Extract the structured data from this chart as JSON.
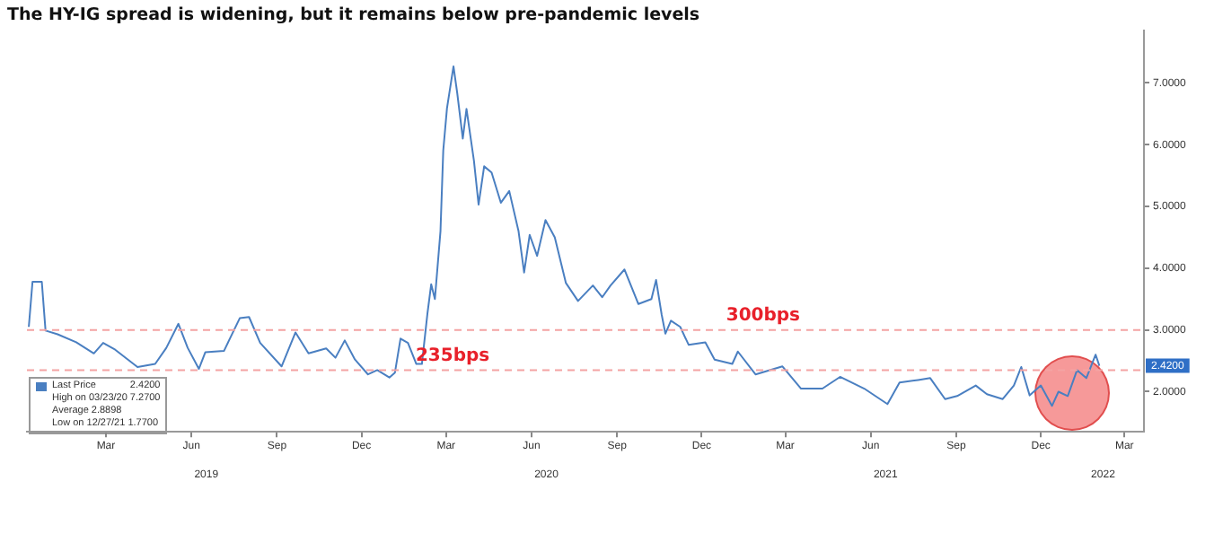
{
  "chart_data": {
    "type": "line",
    "title": "The HY-IG spread is widening, but it remains below pre-pandemic levels",
    "series": [
      {
        "name": "Last Price",
        "color": "#4a7fc1",
        "x": [
          "2018-12-22",
          "2018-12-26",
          "2019-01-05",
          "2019-01-09",
          "2019-01-22",
          "2019-02-11",
          "2019-03-02",
          "2019-03-12",
          "2019-03-25",
          "2019-04-18",
          "2019-05-07",
          "2019-05-19",
          "2019-06-01",
          "2019-06-11",
          "2019-06-23",
          "2019-06-30",
          "2019-07-20",
          "2019-08-06",
          "2019-08-16",
          "2019-08-28",
          "2019-09-20",
          "2019-10-05",
          "2019-10-19",
          "2019-11-07",
          "2019-11-17",
          "2019-11-27",
          "2019-12-08",
          "2019-12-22",
          "2020-01-01",
          "2020-01-14",
          "2020-01-20",
          "2020-01-26",
          "2020-02-03",
          "2020-02-12",
          "2020-02-18",
          "2020-02-24",
          "2020-02-28",
          "2020-03-03",
          "2020-03-09",
          "2020-03-12",
          "2020-03-16",
          "2020-03-23",
          "2020-03-27",
          "2020-04-02",
          "2020-04-06",
          "2020-04-14",
          "2020-04-19",
          "2020-04-25",
          "2020-05-03",
          "2020-05-13",
          "2020-05-22",
          "2020-06-01",
          "2020-06-07",
          "2020-06-13",
          "2020-06-21",
          "2020-06-30",
          "2020-07-10",
          "2020-07-22",
          "2020-08-04",
          "2020-08-20",
          "2020-08-30",
          "2020-09-08",
          "2020-09-23",
          "2020-10-08",
          "2020-10-22",
          "2020-10-27",
          "2020-11-02",
          "2020-11-06",
          "2020-11-12",
          "2020-11-22",
          "2020-12-01",
          "2020-12-19",
          "2020-12-29",
          "2021-01-17",
          "2021-01-23",
          "2021-02-11",
          "2021-03-12",
          "2021-04-01",
          "2021-04-24",
          "2021-05-13",
          "2021-06-08",
          "2021-07-03",
          "2021-07-16",
          "2021-08-05",
          "2021-08-18",
          "2021-09-03",
          "2021-09-16",
          "2021-10-06",
          "2021-10-18",
          "2021-11-04",
          "2021-11-16",
          "2021-11-24",
          "2021-12-03",
          "2021-12-15",
          "2021-12-27",
          "2022-01-03",
          "2022-01-13",
          "2022-01-23",
          "2022-02-02",
          "2022-02-12",
          "2022-02-16"
        ],
        "values": [
          3.05,
          3.78,
          3.78,
          2.99,
          2.93,
          2.8,
          2.62,
          2.79,
          2.68,
          2.4,
          2.45,
          2.71,
          3.1,
          2.71,
          2.37,
          2.64,
          2.66,
          3.19,
          3.21,
          2.79,
          2.41,
          2.96,
          2.62,
          2.7,
          2.55,
          2.83,
          2.52,
          2.28,
          2.35,
          2.23,
          2.31,
          2.86,
          2.79,
          2.45,
          2.45,
          3.27,
          3.74,
          3.5,
          4.6,
          5.91,
          6.59,
          7.27,
          6.84,
          6.1,
          6.58,
          5.74,
          5.03,
          5.65,
          5.55,
          5.06,
          5.25,
          4.6,
          3.93,
          4.54,
          4.2,
          4.78,
          4.5,
          3.76,
          3.47,
          3.72,
          3.53,
          3.72,
          3.98,
          3.42,
          3.5,
          3.81,
          3.25,
          2.94,
          3.15,
          3.05,
          2.76,
          2.8,
          2.52,
          2.45,
          2.65,
          2.28,
          2.41,
          2.05,
          2.05,
          2.24,
          2.05,
          1.8,
          2.15,
          2.19,
          2.22,
          1.88,
          1.93,
          2.1,
          1.96,
          1.88,
          2.1,
          2.4,
          1.94,
          2.1,
          1.77,
          2.0,
          1.93,
          2.35,
          2.22,
          2.6,
          2.42
        ]
      }
    ],
    "xlim": [
      "2018-12-20",
      "2022-04-05"
    ],
    "xticks": [
      {
        "value": "2019-03-15",
        "label": "Mar"
      },
      {
        "value": "2019-06-15",
        "label": "Jun"
      },
      {
        "value": "2019-09-15",
        "label": "Sep"
      },
      {
        "value": "2019-12-15",
        "label": "Dec"
      },
      {
        "value": "2020-03-15",
        "label": "Mar"
      },
      {
        "value": "2020-06-15",
        "label": "Jun"
      },
      {
        "value": "2020-09-15",
        "label": "Sep"
      },
      {
        "value": "2020-12-15",
        "label": "Dec"
      },
      {
        "value": "2021-03-15",
        "label": "Mar"
      },
      {
        "value": "2021-06-15",
        "label": "Jun"
      },
      {
        "value": "2021-09-15",
        "label": "Sep"
      },
      {
        "value": "2021-12-15",
        "label": "Dec"
      },
      {
        "value": "2022-03-15",
        "label": "Mar"
      }
    ],
    "x2lim": [
      "2018-12-20",
      "2022-04-05"
    ],
    "x2ticks": [
      {
        "value": "2019-07-01",
        "label": "2019"
      },
      {
        "value": "2020-07-01",
        "label": "2020"
      },
      {
        "value": "2021-07-01",
        "label": "2021"
      },
      {
        "value": "2022-02-20",
        "label": "2022"
      }
    ],
    "ylim": [
      1.35,
      7.85
    ],
    "yticks": [
      {
        "value": 2,
        "label": "2.0000"
      },
      {
        "value": 3,
        "label": "3.0000"
      },
      {
        "value": 4,
        "label": "4.0000"
      },
      {
        "value": 5,
        "label": "5.0000"
      },
      {
        "value": 6,
        "label": "6.0000"
      },
      {
        "value": 7,
        "label": "7.0000"
      }
    ],
    "ref_lines": [
      {
        "axis": "y",
        "value": 3.0,
        "label": "300bps",
        "color": "#f4a3a3",
        "line_style": "dashed"
      },
      {
        "axis": "y",
        "value": 2.35,
        "label": "235bps",
        "color": "#f4a3a3",
        "line_style": "dashed"
      }
    ],
    "annotations": [
      "2.4200",
      "High on 03/23/20 7.2700",
      "Average 2.8898",
      "Low on 12/27/21 1.7700"
    ],
    "legend": "bottom left",
    "grid": false,
    "marker": "none",
    "line_style": "solid"
  }
}
